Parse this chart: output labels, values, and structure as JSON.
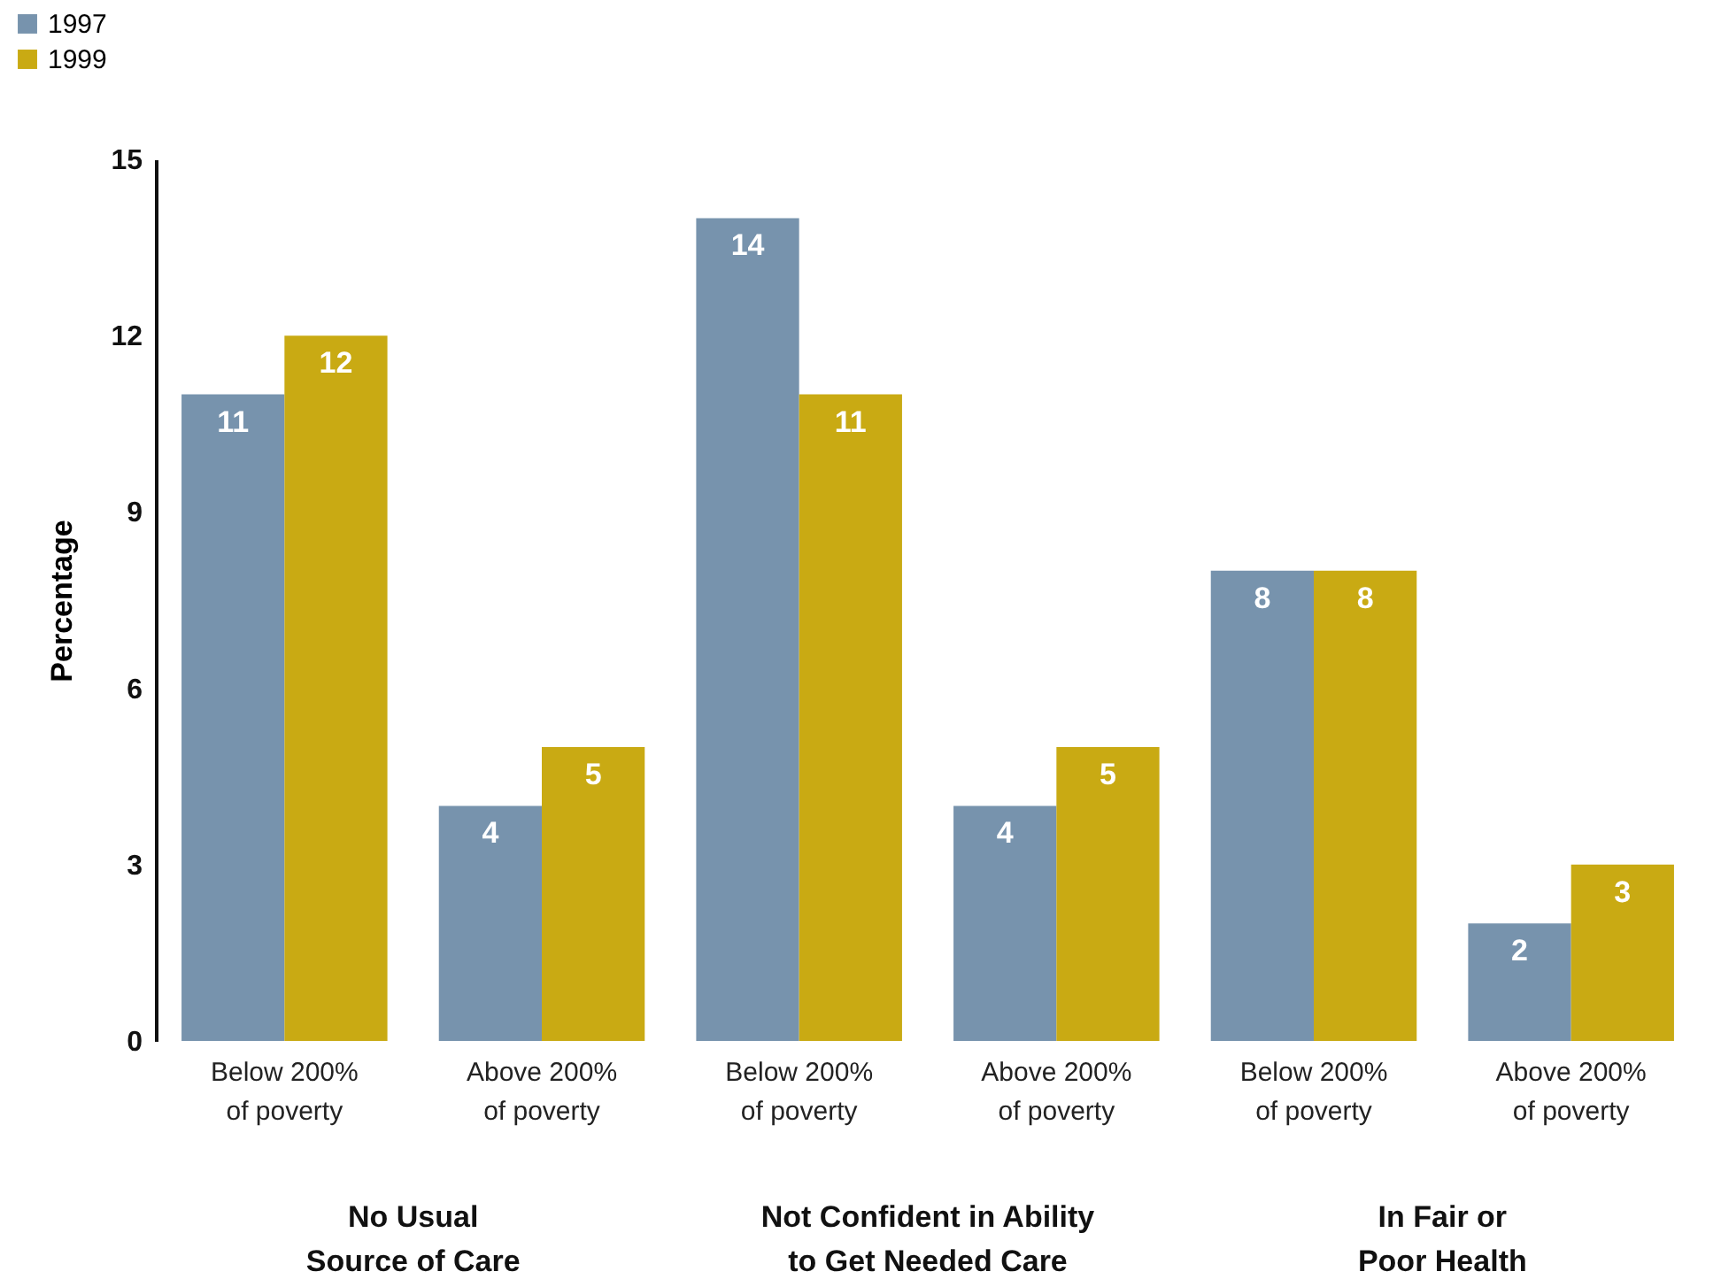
{
  "chart_data": {
    "type": "bar",
    "ylabel": "Percentage",
    "categories": [
      "Below 200% of poverty",
      "Above 200% of poverty",
      "Below 200% of poverty",
      "Above 200% of poverty",
      "Below 200% of poverty",
      "Above 200% of poverty"
    ],
    "series": [
      {
        "name": "1997",
        "color": "#7793ad",
        "values": [
          11,
          4,
          14,
          4,
          8,
          2
        ]
      },
      {
        "name": "1999",
        "color": "#c9aa13",
        "values": [
          12,
          5,
          11,
          5,
          8,
          3
        ]
      }
    ],
    "ylim": [
      0,
      15
    ],
    "yticks": [
      0,
      3,
      6,
      9,
      12,
      15
    ],
    "grid": false,
    "legend": "top left",
    "data_labels": true,
    "annotations": [
      "No Usual Source of Care",
      "Not Confident in Ability to Get Needed Care",
      "In Fair or Poor Health"
    ]
  }
}
